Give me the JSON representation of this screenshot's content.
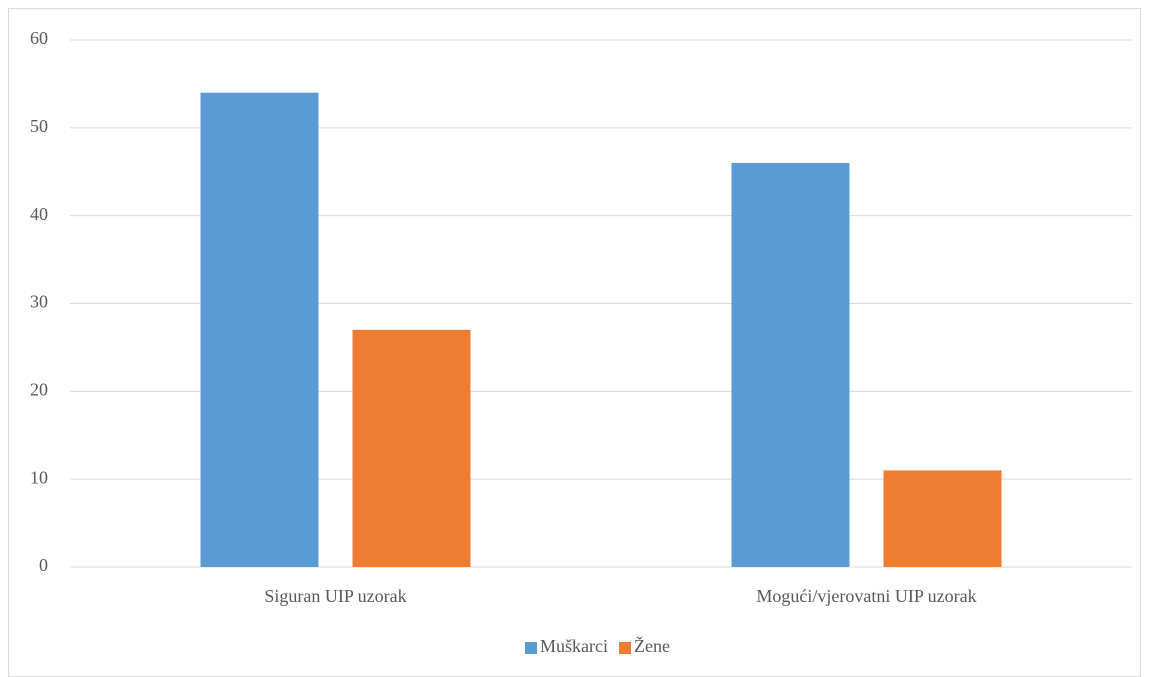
{
  "chart_data": {
    "type": "bar",
    "categories": [
      "Siguran UIP uzorak",
      "Mogući/vjerovatni UIP uzorak"
    ],
    "series": [
      {
        "name": "Muškarci",
        "color": "#5b9bd5",
        "values": [
          54,
          46
        ]
      },
      {
        "name": "Žene",
        "color": "#ed7d31",
        "values": [
          27,
          11
        ]
      }
    ],
    "ylim": [
      0,
      60
    ],
    "yticks": [
      0,
      10,
      20,
      30,
      40,
      50,
      60
    ],
    "grid": true,
    "legend": "bottom"
  }
}
